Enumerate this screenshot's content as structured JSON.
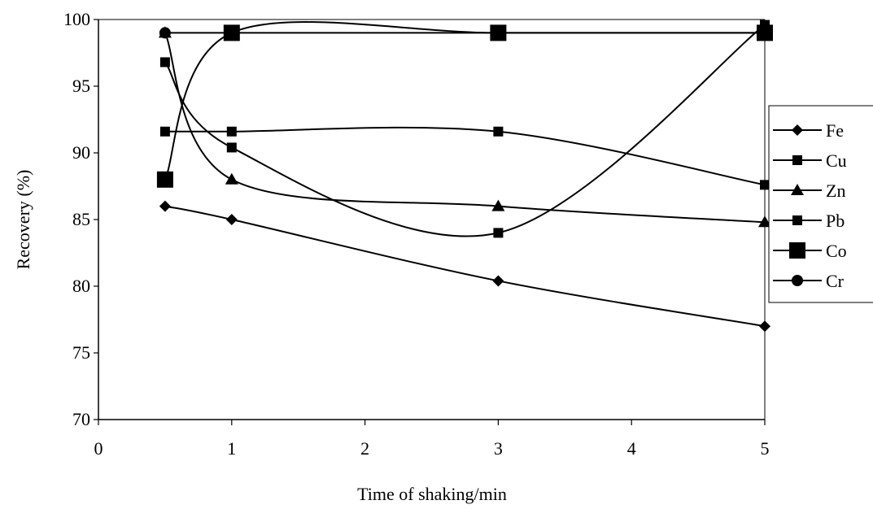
{
  "chart_data": {
    "type": "line",
    "title": "",
    "xlabel": "Time of shaking/min",
    "ylabel": "Recovery (%)",
    "xlim": [
      0,
      5
    ],
    "ylim": [
      70,
      100
    ],
    "xticks": [
      "0",
      "1",
      "2",
      "3",
      "4",
      "5"
    ],
    "yticks": [
      "70",
      "75",
      "80",
      "85",
      "90",
      "95",
      "100"
    ],
    "grid": false,
    "legend_position": "right",
    "x": [
      0.5,
      1,
      3,
      5
    ],
    "series": [
      {
        "name": "Fe",
        "marker": "diamond",
        "values": [
          86,
          85,
          80.4,
          77
        ]
      },
      {
        "name": "Cu",
        "marker": "square",
        "values": [
          91.6,
          91.6,
          91.6,
          87.6
        ]
      },
      {
        "name": "Zn",
        "marker": "triangle",
        "values": [
          99,
          88,
          86,
          84.8
        ]
      },
      {
        "name": "Pb",
        "marker": "square",
        "values": [
          96.8,
          90.4,
          84,
          99.6
        ]
      },
      {
        "name": "Co",
        "marker": "big-square",
        "values": [
          88,
          99,
          99,
          99
        ]
      },
      {
        "name": "Cr",
        "marker": "circle",
        "values": [
          99,
          99,
          99,
          99
        ]
      }
    ]
  }
}
